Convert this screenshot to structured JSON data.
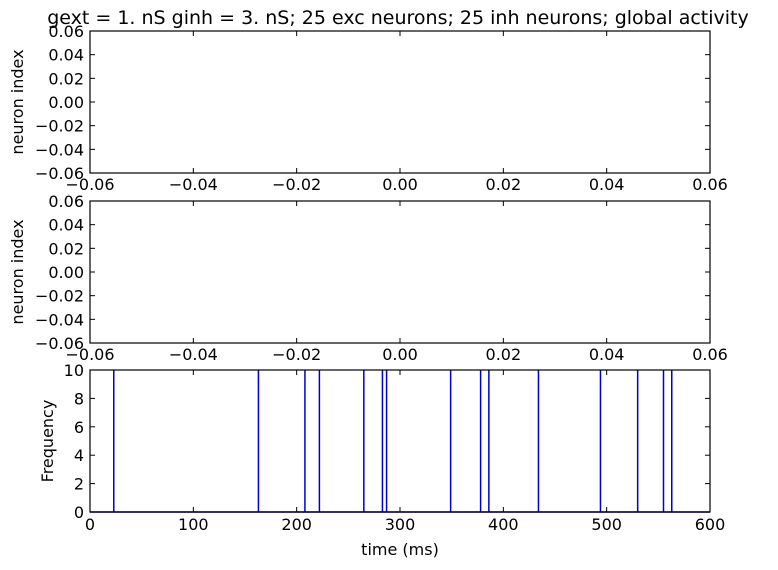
{
  "chart_data": [
    {
      "type": "scatter",
      "title": "gext = 1. nS ginh = 3. nS; 25 exc neurons; 25 inh neurons; global activity",
      "xlabel": "",
      "ylabel": "neuron index",
      "xlim": [
        -0.06,
        0.06
      ],
      "ylim": [
        -0.06,
        0.06
      ],
      "x_ticks": [
        "−0.06",
        "−0.04",
        "−0.02",
        "0.00",
        "0.02",
        "0.04",
        "0.06"
      ],
      "y_ticks": [
        "−0.06",
        "−0.04",
        "−0.02",
        "0.00",
        "0.02",
        "0.04",
        "0.06"
      ],
      "points": []
    },
    {
      "type": "scatter",
      "title": "",
      "xlabel": "",
      "ylabel": "neuron index",
      "xlim": [
        -0.06,
        0.06
      ],
      "ylim": [
        -0.06,
        0.06
      ],
      "x_ticks": [
        "−0.06",
        "−0.04",
        "−0.02",
        "0.00",
        "0.02",
        "0.04",
        "0.06"
      ],
      "y_ticks": [
        "−0.06",
        "−0.04",
        "−0.02",
        "0.00",
        "0.02",
        "0.04",
        "0.06"
      ],
      "points": []
    },
    {
      "type": "line",
      "title": "",
      "xlabel": "time (ms)",
      "ylabel": "Frequency",
      "xlim": [
        0,
        600
      ],
      "ylim": [
        0,
        10
      ],
      "x_ticks": [
        "0",
        "100",
        "200",
        "300",
        "400",
        "500",
        "600"
      ],
      "y_ticks": [
        "0",
        "2",
        "4",
        "6",
        "8",
        "10"
      ],
      "color": "#0000cc",
      "spike_times": [
        23,
        163,
        208,
        222,
        265,
        283,
        287,
        349,
        378,
        386,
        434,
        494,
        530,
        555,
        563
      ],
      "spike_height": 10,
      "baseline": 0
    }
  ]
}
